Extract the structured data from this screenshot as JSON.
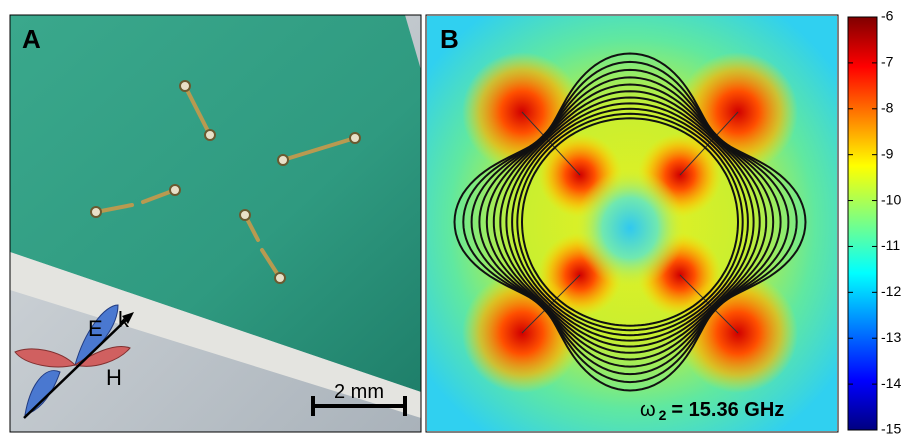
{
  "panel_a": {
    "label": "A",
    "polarization": {
      "e": "E",
      "k": "k",
      "h": "H"
    },
    "scale_bar": "2 mm"
  },
  "panel_b": {
    "label": "B",
    "frequency_symbol": "ω",
    "frequency_subscript": "2",
    "frequency_text": "= 15.36 GHz"
  },
  "colorbar": {
    "lim": [
      -15,
      -6
    ],
    "ticks": [
      -6,
      -7,
      -8,
      -9,
      -10,
      -11,
      -12,
      -13,
      -14,
      -15
    ]
  }
}
